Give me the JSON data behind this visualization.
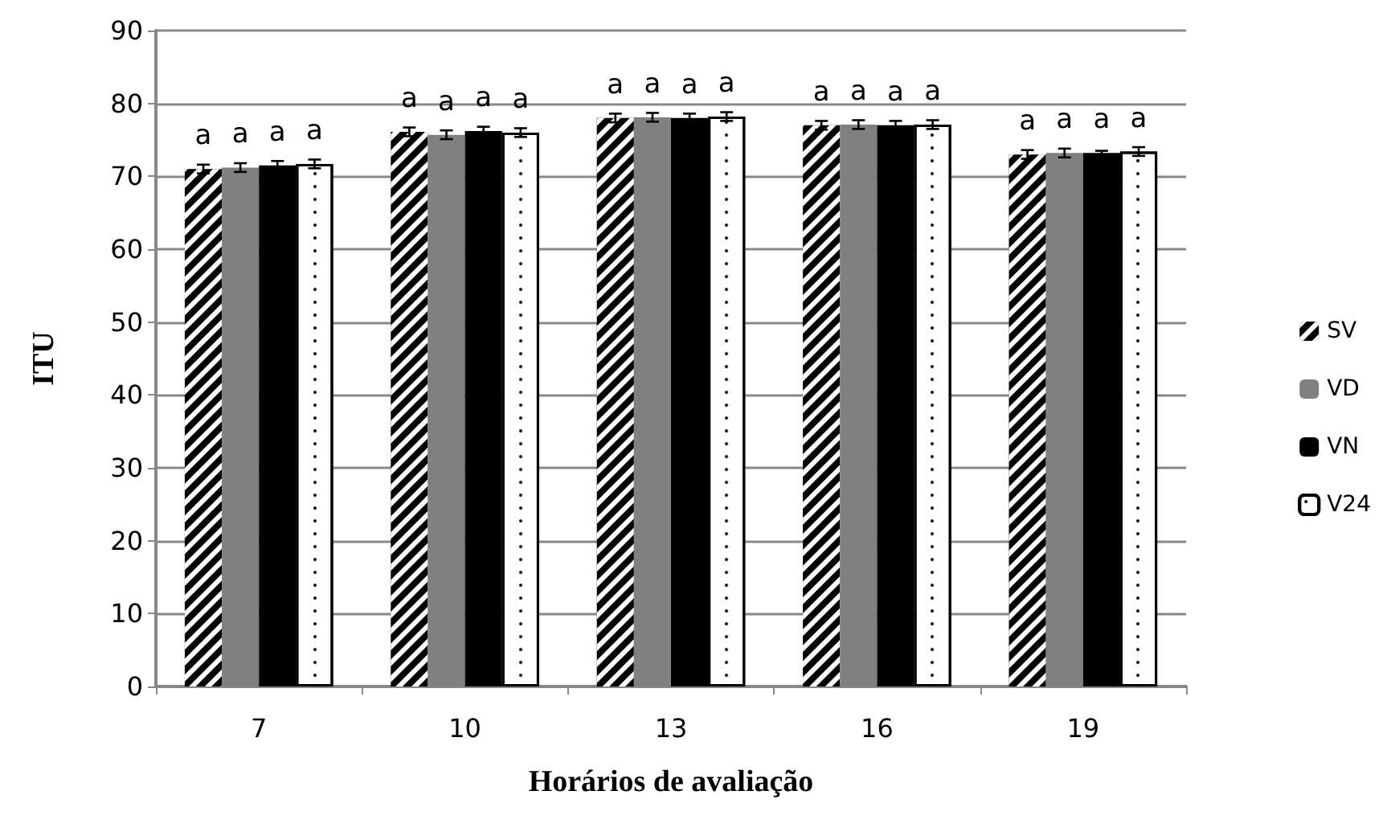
{
  "chart_data": {
    "type": "bar",
    "xlabel": "Horários de avaliação",
    "ylabel": "ITU",
    "categories": [
      "7",
      "10",
      "13",
      "16",
      "19"
    ],
    "series": [
      {
        "name": "SV",
        "color": "#000000",
        "values": [
          71.0,
          76.1,
          78.0,
          77.0,
          73.0
        ],
        "errors": [
          0.6,
          0.6,
          0.6,
          0.6,
          0.6
        ],
        "value_labels": [
          "a",
          "a",
          "a",
          "a",
          "a"
        ]
      },
      {
        "name": "VD",
        "color": "#808080",
        "values": [
          71.2,
          75.7,
          78.1,
          77.1,
          73.2
        ],
        "errors": [
          0.6,
          0.6,
          0.6,
          0.6,
          0.6
        ],
        "value_labels": [
          "a",
          "a",
          "a",
          "a",
          "a"
        ]
      },
      {
        "name": "VN",
        "color": "#000000",
        "values": [
          71.5,
          76.2,
          78.0,
          77.0,
          73.2
        ],
        "errors": [
          0.6,
          0.6,
          0.6,
          0.6,
          0.3
        ],
        "value_labels": [
          "a",
          "a",
          "a",
          "a",
          "a"
        ]
      },
      {
        "name": "V24",
        "color": "#ffffff",
        "values": [
          71.7,
          76.0,
          78.2,
          77.1,
          73.4
        ],
        "errors": [
          0.6,
          0.6,
          0.6,
          0.6,
          0.6
        ],
        "value_labels": [
          "a",
          "a",
          "a",
          "a",
          "a"
        ]
      }
    ],
    "ylim": [
      0,
      90
    ],
    "yticks": [
      0,
      10,
      20,
      30,
      40,
      50,
      60,
      70,
      80,
      90
    ],
    "grid": "y",
    "legend": "right"
  }
}
